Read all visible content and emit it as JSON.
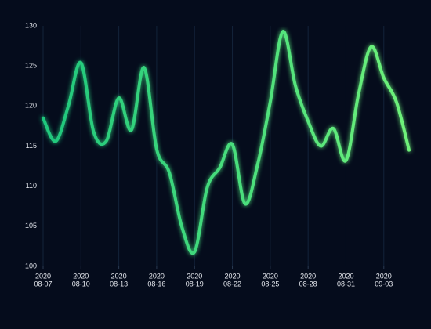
{
  "chart_data": {
    "type": "line",
    "x": [
      "2020-08-07",
      "2020-08-08",
      "2020-08-09",
      "2020-08-10",
      "2020-08-11",
      "2020-08-12",
      "2020-08-13",
      "2020-08-14",
      "2020-08-15",
      "2020-08-16",
      "2020-08-17",
      "2020-08-18",
      "2020-08-19",
      "2020-08-20",
      "2020-08-21",
      "2020-08-22",
      "2020-08-23",
      "2020-08-24",
      "2020-08-25",
      "2020-08-26",
      "2020-08-27",
      "2020-08-28",
      "2020-08-29",
      "2020-08-30",
      "2020-08-31",
      "2020-09-01",
      "2020-09-02",
      "2020-09-03",
      "2020-09-04",
      "2020-09-05"
    ],
    "series": [
      {
        "colors": [
          "#1fc77d",
          "#6ff27a"
        ],
        "values": [
          118.5,
          115.6,
          120,
          125.4,
          116.8,
          115.6,
          121,
          117,
          124.8,
          114.6,
          111.7,
          104.9,
          101.8,
          109.8,
          112.3,
          115.2,
          107.8,
          112.7,
          120.5,
          129.3,
          122.5,
          118.1,
          115,
          117.2,
          113.2,
          121.5,
          127.4,
          123.5,
          120.5,
          114.5
        ]
      }
    ],
    "ylim": [
      100,
      130
    ],
    "yticks": [
      100,
      105,
      110,
      115,
      120,
      125,
      130
    ],
    "xticks": [
      {
        "value": "2020-08-07",
        "label": [
          "2020",
          "08-07"
        ]
      },
      {
        "value": "2020-08-10",
        "label": [
          "2020",
          "08-10"
        ]
      },
      {
        "value": "2020-08-13",
        "label": [
          "2020",
          "08-13"
        ]
      },
      {
        "value": "2020-08-16",
        "label": [
          "2020",
          "08-16"
        ]
      },
      {
        "value": "2020-08-19",
        "label": [
          "2020",
          "08-19"
        ]
      },
      {
        "value": "2020-08-22",
        "label": [
          "2020",
          "08-22"
        ]
      },
      {
        "value": "2020-08-25",
        "label": [
          "2020",
          "08-25"
        ]
      },
      {
        "value": "2020-08-28",
        "label": [
          "2020",
          "08-28"
        ]
      },
      {
        "value": "2020-08-31",
        "label": [
          "2020",
          "08-31"
        ]
      },
      {
        "value": "2020-09-03",
        "label": [
          "2020",
          "09-03"
        ]
      }
    ],
    "grid": true
  }
}
